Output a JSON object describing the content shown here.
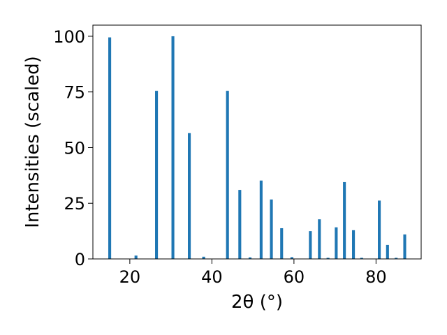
{
  "chart_data": {
    "type": "bar",
    "xlabel": "2θ (°)",
    "ylabel": "Intensities (scaled)",
    "xlim": [
      11,
      91
    ],
    "ylim": [
      0,
      105
    ],
    "xticks": [
      20,
      40,
      60,
      80
    ],
    "yticks": [
      0,
      25,
      50,
      75,
      100
    ],
    "grid": false,
    "bar_color": "#1f77b4",
    "bar_width": 0.7,
    "x": [
      15.1,
      21.5,
      26.5,
      30.5,
      34.5,
      38.0,
      43.8,
      46.8,
      49.3,
      52.0,
      54.5,
      57.0,
      59.5,
      64.0,
      66.2,
      68.3,
      70.3,
      72.3,
      74.5,
      76.5,
      80.8,
      82.8,
      84.9,
      87.0
    ],
    "values": [
      99.5,
      1.5,
      75.5,
      100.0,
      56.5,
      1.0,
      75.5,
      31.0,
      0.7,
      35.2,
      26.7,
      13.8,
      0.8,
      12.5,
      17.8,
      0.5,
      14.2,
      34.5,
      12.9,
      0.5,
      26.2,
      6.3,
      0.5,
      11.0
    ]
  }
}
